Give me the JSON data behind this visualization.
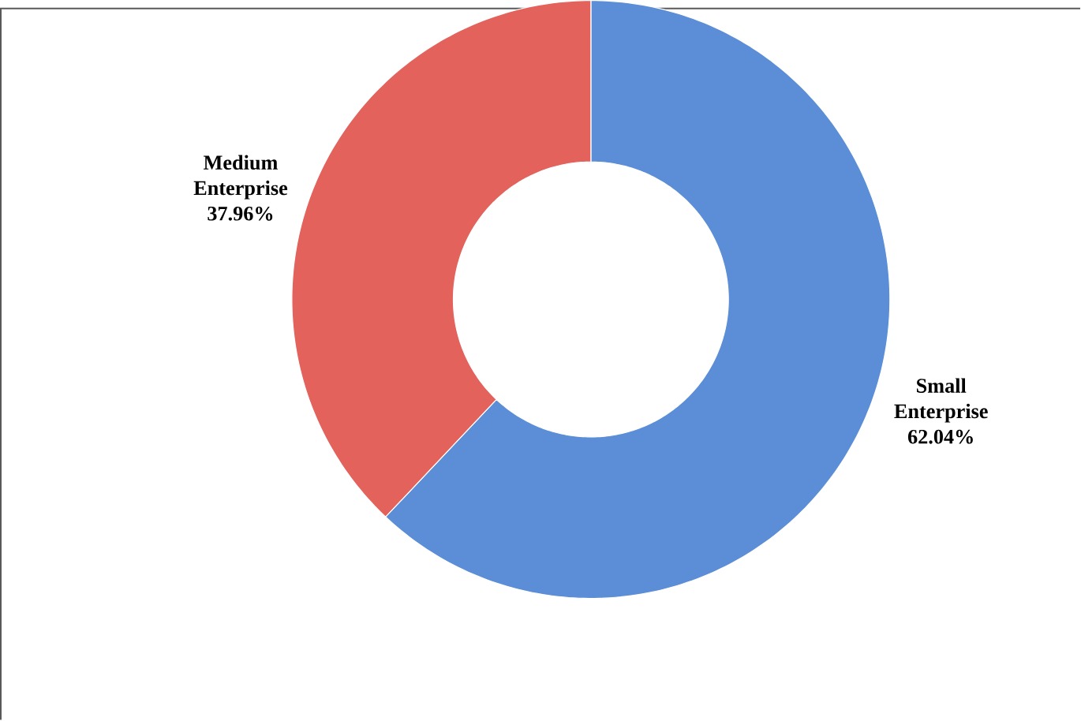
{
  "chart_data": {
    "type": "donut",
    "categories": [
      "Small Enterprise",
      "Medium Enterprise"
    ],
    "values": [
      62.04,
      37.96
    ],
    "colors": [
      "#5b8ed6",
      "#e4625c"
    ],
    "value_labels": [
      "62.04%",
      "37.96%"
    ]
  }
}
